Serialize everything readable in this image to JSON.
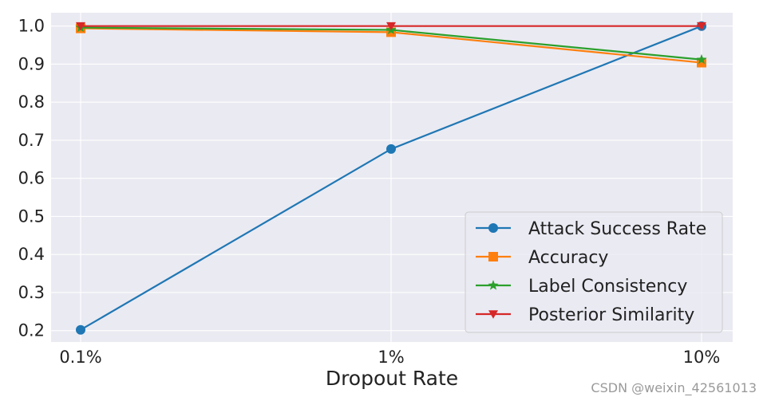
{
  "chart_data": {
    "type": "line",
    "title": "",
    "xlabel": "Dropout Rate",
    "ylabel": "",
    "categories": [
      "0.1%",
      "1%",
      "10%"
    ],
    "ylim": [
      0.17,
      1.035
    ],
    "yticks": [
      "0.2",
      "0.3",
      "0.4",
      "0.5",
      "0.6",
      "0.7",
      "0.8",
      "0.9",
      "1.0"
    ],
    "grid": true,
    "legend_position": "lower-right",
    "series": [
      {
        "name": "Attack Success Rate",
        "values": [
          0.202,
          0.677,
          1.0
        ],
        "color": "#1f77b4",
        "marker": "circle"
      },
      {
        "name": "Accuracy",
        "values": [
          0.994,
          0.984,
          0.904
        ],
        "color": "#ff7f0e",
        "marker": "square"
      },
      {
        "name": "Label Consistency",
        "values": [
          0.996,
          0.99,
          0.912
        ],
        "color": "#2ca02c",
        "marker": "star"
      },
      {
        "name": "Posterior Similarity",
        "values": [
          1.0,
          1.0,
          1.0
        ],
        "color": "#d62728",
        "marker": "triangle-down"
      }
    ]
  },
  "watermark": "CSDN @weixin_42561013"
}
